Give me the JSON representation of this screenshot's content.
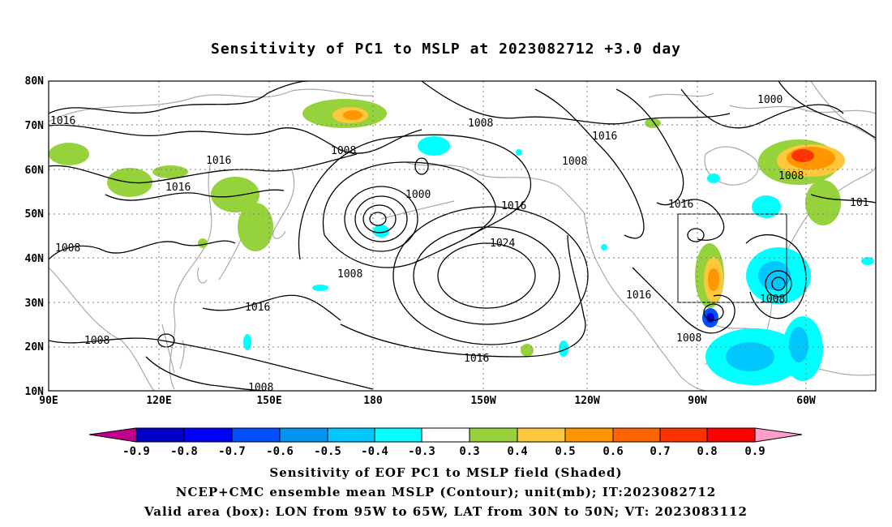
{
  "title": "Sensitivity of PC1 to MSLP at 2023082712 +3.0 day",
  "map": {
    "lat_labels": [
      "80N",
      "70N",
      "60N",
      "50N",
      "40N",
      "30N",
      "20N",
      "10N"
    ],
    "lon_labels": [
      "90E",
      "120E",
      "150E",
      "180",
      "150W",
      "120W",
      "90W",
      "60W"
    ],
    "contour_labels": [
      "1016",
      "1008",
      "1016",
      "1016",
      "1000",
      "1008",
      "1016",
      "1008",
      "1000",
      "1008",
      "1016",
      "1024",
      "1008",
      "1016",
      "1016",
      "1008",
      "1008",
      "101",
      "1008",
      "1016",
      "1008",
      "1008"
    ],
    "valid_box": {
      "lon_from": "95W",
      "lon_to": "65W",
      "lat_from": "30N",
      "lat_to": "50N"
    },
    "colors": {
      "coast": "#a9a9a9",
      "shade": [
        "#c0008c",
        "#0000c8",
        "#0000ff",
        "#0050ff",
        "#0096f0",
        "#00c8ff",
        "#00ffff",
        "#ffffff",
        "#96d23c",
        "#ffc83c",
        "#ff9600",
        "#ff6400",
        "#ff3200",
        "#ff0000",
        "#ff9ec8"
      ]
    }
  },
  "colorbar": {
    "labels": [
      "-0.9",
      "-0.8",
      "-0.7",
      "-0.6",
      "-0.5",
      "-0.4",
      "-0.3",
      "0.3",
      "0.4",
      "0.5",
      "0.6",
      "0.7",
      "0.8",
      "0.9"
    ]
  },
  "captions": [
    "Sensitivity of EOF PC1 to MSLP field (Shaded)",
    "NCEP+CMC ensemble mean MSLP (Contour); unit(mb); IT:2023082712",
    "Valid area (box): LON from 95W to 65W, LAT from 30N to 50N; VT: 2023083112"
  ]
}
